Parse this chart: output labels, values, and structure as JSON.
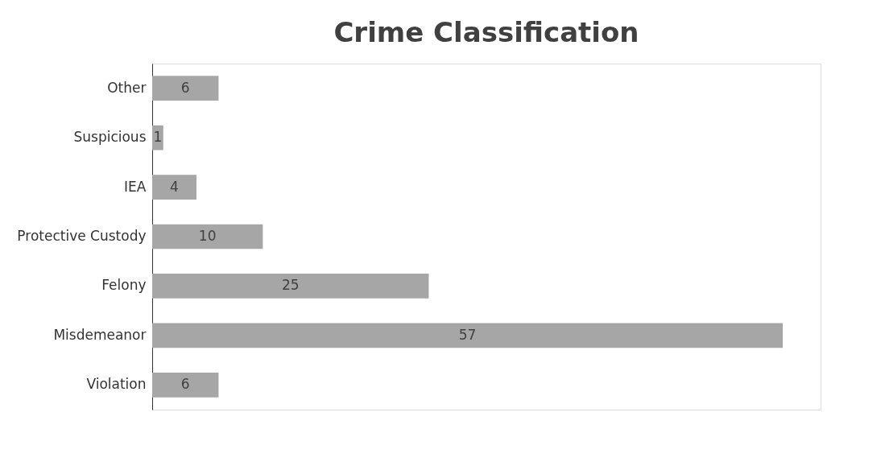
{
  "chart_data": {
    "type": "bar",
    "orientation": "horizontal",
    "title": "Crime Classification",
    "categories": [
      "Other",
      "Suspicious",
      "IEA",
      "Protective Custody",
      "Felony",
      "Misdemeanor",
      "Violation"
    ],
    "values": [
      6,
      1,
      4,
      10,
      25,
      57,
      6
    ],
    "color": "#a6a6a6",
    "data_labels": true,
    "grid": false
  }
}
